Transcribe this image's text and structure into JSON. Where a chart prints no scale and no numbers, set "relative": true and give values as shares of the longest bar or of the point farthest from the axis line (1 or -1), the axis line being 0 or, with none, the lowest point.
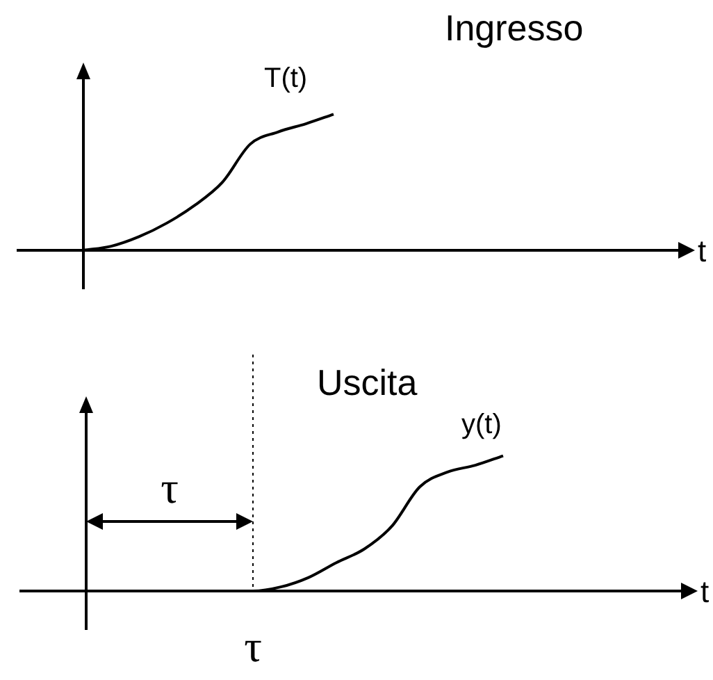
{
  "chart_data": [
    {
      "type": "line",
      "title": "Ingresso",
      "xlabel": "t",
      "relative": true,
      "marker": "none",
      "line_style": "solid",
      "categories": [
        null,
        null,
        null,
        null,
        null,
        null,
        null,
        null,
        null,
        null,
        null,
        null,
        null,
        null,
        null,
        null,
        null,
        null,
        null,
        null,
        null,
        null,
        null
      ],
      "series": [
        {
          "name": "T(t)",
          "color": "#000000",
          "values": [
            0,
            0.03,
            0.1,
            0.2,
            0.33,
            0.5,
            0.78,
            0.87,
            0.93,
            1,
            null,
            null,
            null,
            null,
            null,
            null,
            null,
            null,
            null,
            null,
            null,
            null,
            null
          ]
        }
      ]
    },
    {
      "type": "line",
      "title": "Uscita",
      "xlabel": "t",
      "relative": true,
      "marker": "none",
      "line_style": "solid",
      "categories": [
        null,
        null,
        null,
        null,
        null,
        null,
        null,
        null,
        null,
        null,
        null,
        null,
        null,
        null,
        null,
        null,
        null,
        null,
        null,
        null,
        null,
        null,
        null
      ],
      "series": [
        {
          "name": "y(t)",
          "color": "#000000",
          "values": [
            0,
            0,
            0,
            0,
            0,
            0,
            0,
            0.03,
            0.1,
            0.21,
            0.31,
            0.48,
            0.77,
            0.88,
            0.93,
            1,
            null,
            null,
            null,
            null,
            null,
            null,
            null
          ]
        }
      ],
      "annotations": [
        "τ",
        "τ"
      ]
    }
  ]
}
